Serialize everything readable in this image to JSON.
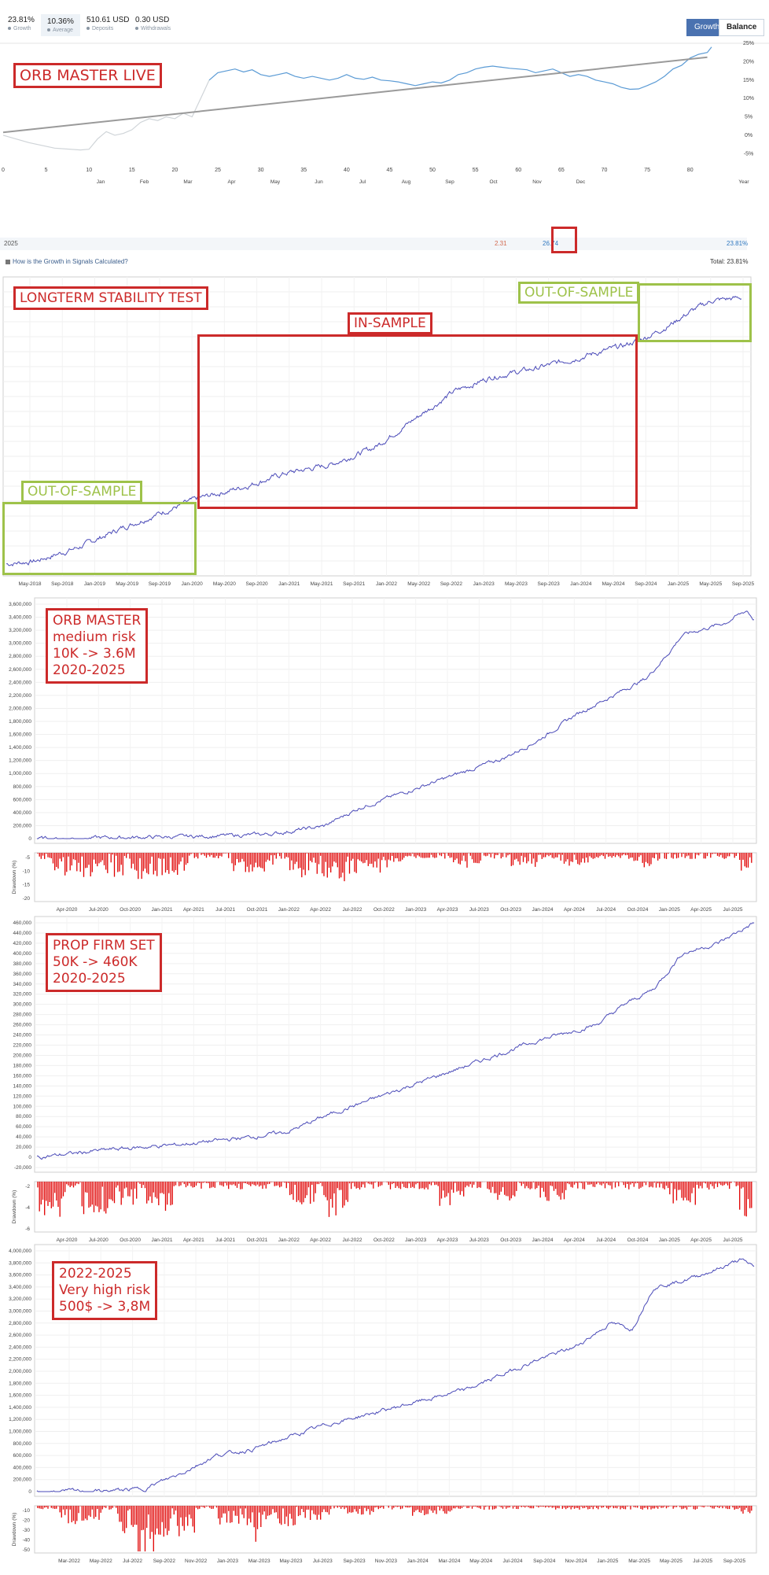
{
  "header": {
    "stats": [
      {
        "value": "23.81%",
        "label": "Growth",
        "dot": "#8a96a3"
      },
      {
        "value": "10.36%",
        "label": "Average",
        "dot": "#8a96a3"
      },
      {
        "value": "510.61 USD",
        "label": "Deposits",
        "dot": "#8a96a3"
      },
      {
        "value": "0.30 USD",
        "label": "Withdrawals",
        "dot": "#8a96a3"
      }
    ],
    "btn_growth": "Growth",
    "btn_balance": "Balance"
  },
  "live": {
    "annotation": "ORB MASTER LIVE",
    "year_label": "2025",
    "sep_value": "2.31",
    "oct_value": "26.74",
    "year_total": "23.81%",
    "help_link": "How is the Growth in Signals Calculated?",
    "total": "Total: 23.81%"
  },
  "longterm": {
    "title": "LONGTERM STABILITY TEST",
    "in_sample": "IN-SAMPLE",
    "oos_left": "OUT-OF-SAMPLE",
    "oos_right": "OUT-OF-SAMPLE"
  },
  "medium": {
    "lines": [
      "ORB MASTER",
      "medium risk",
      "10K -> 3.6M",
      "2020-2025"
    ]
  },
  "prop": {
    "lines": [
      "PROP FIRM SET",
      "50K -> 460K",
      "2020-2025"
    ]
  },
  "high": {
    "lines": [
      "2022-2025",
      "Very high risk",
      "500$ -> 3,8M"
    ]
  },
  "drawdown_label": "Drawdown (%)",
  "colors": {
    "growth_line": "#5b9bd5",
    "trend_line": "#9a9a9a",
    "balance_line": "#4a4ab8",
    "drawdown": "#e00000",
    "red_label": "#cc2a2a",
    "green_label": "#9ec24a"
  },
  "chart_data": [
    {
      "type": "line",
      "title": "",
      "x_ticks": [
        "0",
        "5",
        "10",
        "15",
        "20",
        "25",
        "30",
        "35",
        "40",
        "45",
        "50",
        "55",
        "60",
        "65",
        "70",
        "75",
        "80"
      ],
      "month_ticks": [
        "Jan",
        "Feb",
        "Mar",
        "Apr",
        "May",
        "Jun",
        "Jul",
        "Aug",
        "Sep",
        "Oct",
        "Nov",
        "Dec",
        "Year"
      ],
      "y_ticks": [
        "25%",
        "20%",
        "15%",
        "10%",
        "5%",
        "0%",
        "-5%"
      ],
      "ylim": [
        -6,
        25
      ],
      "series": [
        {
          "x": [
            0,
            3,
            6,
            9,
            10,
            11,
            12,
            13,
            14,
            15,
            16,
            17,
            18,
            19,
            20,
            21,
            22,
            23,
            24,
            25,
            26,
            27,
            28,
            29,
            30,
            31,
            32,
            33,
            34,
            35,
            36,
            37,
            38,
            39,
            40,
            41,
            42,
            43,
            44,
            45,
            46,
            47,
            48,
            49,
            50,
            51,
            52,
            53,
            54,
            55,
            56,
            57,
            58,
            59,
            60,
            61,
            62,
            63,
            64,
            65,
            66,
            67,
            68,
            69,
            70,
            71,
            72,
            73,
            74,
            75,
            76,
            77,
            78,
            79,
            80,
            81,
            82,
            82.5
          ],
          "y": [
            0,
            -2,
            -3.5,
            -4,
            -3.8,
            -1,
            1,
            0,
            0.5,
            1.5,
            3.5,
            4.5,
            4,
            5,
            4.5,
            6,
            5,
            10,
            15,
            17,
            17.5,
            18,
            17.2,
            17.8,
            16.5,
            16,
            16.5,
            17,
            16,
            15.5,
            16,
            15.5,
            15,
            15.5,
            16.5,
            15.5,
            15.2,
            15.8,
            15,
            14.8,
            14.5,
            14,
            13.5,
            14,
            14.5,
            14.2,
            15,
            16.5,
            17,
            18,
            18.5,
            18.8,
            18.5,
            18.2,
            18,
            17.8,
            17,
            17.5,
            18,
            17,
            16,
            16.5,
            16,
            15,
            14.5,
            14,
            13,
            12.5,
            12.6,
            13.5,
            14.5,
            16,
            18,
            19,
            21,
            22,
            22.5,
            24
          ]
        }
      ],
      "trend": {
        "x": [
          0,
          82
        ],
        "y": [
          0.8,
          21.2
        ]
      }
    },
    {
      "type": "line",
      "title": "",
      "x_ticks": [
        "May-2018",
        "Sep-2018",
        "Jan-2019",
        "May-2019",
        "Sep-2019",
        "Jan-2020",
        "May-2020",
        "Sep-2020",
        "Jan-2021",
        "May-2021",
        "Sep-2021",
        "Jan-2022",
        "May-2022",
        "Sep-2022",
        "Jan-2023",
        "May-2023",
        "Sep-2023",
        "Jan-2024",
        "May-2024",
        "Sep-2024",
        "Jan-2025",
        "May-2025",
        "Sep-2025"
      ],
      "series": [
        {
          "x": [
            0,
            0.04,
            0.1,
            0.16,
            0.22,
            0.26,
            0.32,
            0.38,
            0.44,
            0.5,
            0.56,
            0.61,
            0.66,
            0.72,
            0.78,
            0.84,
            0.87,
            0.9,
            0.93,
            0.96,
            1.0
          ],
          "y": [
            2,
            3,
            8,
            15,
            21,
            25,
            29,
            34,
            37,
            43,
            54,
            63,
            68,
            71,
            75,
            79,
            82,
            86,
            91,
            95,
            96
          ]
        }
      ]
    },
    {
      "type": "line",
      "title": "",
      "y_ticks": [
        "3,600,000",
        "3,400,000",
        "3,200,000",
        "3,000,000",
        "2,800,000",
        "2,600,000",
        "2,400,000",
        "2,200,000",
        "2,000,000",
        "1,800,000",
        "1,600,000",
        "1,400,000",
        "1,200,000",
        "1,000,000",
        "800,000",
        "600,000",
        "400,000",
        "200,000",
        "0"
      ],
      "x_ticks": [
        "Apr-2020",
        "Jul-2020",
        "Oct-2020",
        "Jan-2021",
        "Apr-2021",
        "Jul-2021",
        "Oct-2021",
        "Jan-2022",
        "Apr-2022",
        "Jul-2022",
        "Oct-2022",
        "Jan-2023",
        "Apr-2023",
        "Jul-2023",
        "Oct-2023",
        "Jan-2024",
        "Apr-2024",
        "Jul-2024",
        "Oct-2024",
        "Jan-2025",
        "Apr-2025",
        "Jul-2025"
      ],
      "ylim": [
        0,
        3800000
      ],
      "drawdown_ticks": [
        "-5",
        "-10",
        "-15",
        "-20"
      ],
      "series": [
        {
          "name": "",
          "x": [
            0,
            0.2,
            0.3,
            0.33,
            0.4,
            0.45,
            0.5,
            0.55,
            0.6,
            0.65,
            0.7,
            0.75,
            0.8,
            0.85,
            0.88,
            0.9,
            0.93,
            0.96,
            0.99,
            1.0
          ],
          "y": [
            0,
            30000,
            60000,
            80000,
            200000,
            500000,
            700000,
            900000,
            1100000,
            1300000,
            1600000,
            2000000,
            2300000,
            2600000,
            3000000,
            3300000,
            3400000,
            3500000,
            3700000,
            3550000
          ]
        }
      ]
    },
    {
      "type": "line",
      "title": "",
      "y_ticks": [
        "460,000",
        "440,000",
        "420,000",
        "400,000",
        "380,000",
        "360,000",
        "340,000",
        "320,000",
        "300,000",
        "280,000",
        "260,000",
        "240,000",
        "220,000",
        "200,000",
        "180,000",
        "160,000",
        "140,000",
        "120,000",
        "100,000",
        "80,000",
        "60,000",
        "40,000",
        "20,000",
        "0",
        "-20,000"
      ],
      "x_ticks": [
        "Apr-2020",
        "Jul-2020",
        "Oct-2020",
        "Jan-2021",
        "Apr-2021",
        "Jul-2021",
        "Oct-2021",
        "Jan-2022",
        "Apr-2022",
        "Jul-2022",
        "Oct-2022",
        "Jan-2023",
        "Apr-2023",
        "Jul-2023",
        "Oct-2023",
        "Jan-2024",
        "Apr-2024",
        "Jul-2024",
        "Oct-2024",
        "Jan-2025",
        "Apr-2025",
        "Jul-2025"
      ],
      "ylim": [
        -20000,
        460000
      ],
      "drawdown_ticks": [
        "-2",
        "-4",
        "-6"
      ],
      "series": [
        {
          "name": "",
          "x": [
            0,
            0.1,
            0.2,
            0.3,
            0.35,
            0.4,
            0.5,
            0.6,
            0.7,
            0.78,
            0.82,
            0.86,
            0.9,
            0.95,
            1.0
          ],
          "y": [
            0,
            15000,
            25000,
            40000,
            50000,
            80000,
            130000,
            180000,
            230000,
            260000,
            300000,
            330000,
            400000,
            420000,
            460000
          ]
        }
      ]
    },
    {
      "type": "line",
      "title": "",
      "y_ticks": [
        "4,000,000",
        "3,800,000",
        "3,600,000",
        "3,400,000",
        "3,200,000",
        "3,000,000",
        "2,800,000",
        "2,600,000",
        "2,400,000",
        "2,200,000",
        "2,000,000",
        "1,800,000",
        "1,600,000",
        "1,400,000",
        "1,200,000",
        "1,000,000",
        "800,000",
        "600,000",
        "400,000",
        "200,000",
        "0"
      ],
      "x_ticks": [
        "Mar-2022",
        "May-2022",
        "Jul-2022",
        "Sep-2022",
        "Nov-2022",
        "Jan-2023",
        "Mar-2023",
        "May-2023",
        "Jul-2023",
        "Sep-2023",
        "Nov-2023",
        "Jan-2024",
        "Mar-2024",
        "May-2024",
        "Jul-2024",
        "Sep-2024",
        "Nov-2024",
        "Jan-2025",
        "Mar-2025",
        "May-2025",
        "Jul-2025",
        "Sep-2025"
      ],
      "ylim": [
        0,
        4000000
      ],
      "drawdown_ticks": [
        "-10",
        "-20",
        "-30",
        "-40",
        "-50"
      ],
      "series": [
        {
          "name": "",
          "x": [
            0,
            0.1,
            0.15,
            0.2,
            0.25,
            0.3,
            0.35,
            0.4,
            0.5,
            0.6,
            0.7,
            0.75,
            0.8,
            0.83,
            0.86,
            0.9,
            0.95,
            0.98,
            1.0
          ],
          "y": [
            0,
            10000,
            50000,
            300000,
            600000,
            700000,
            900000,
            1100000,
            1400000,
            1700000,
            2200000,
            2400000,
            2800000,
            2700000,
            3400000,
            3500000,
            3700000,
            3850000,
            3750000
          ]
        }
      ]
    }
  ]
}
